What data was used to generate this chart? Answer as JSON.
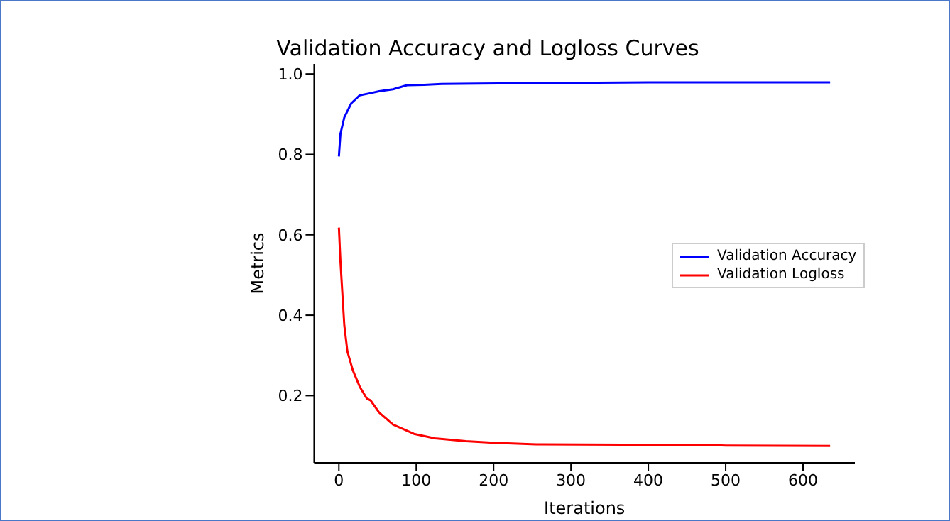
{
  "chart_data": {
    "type": "line",
    "title": "Validation Accuracy and Logloss Curves",
    "xlabel": "Iterations",
    "ylabel": "Metrics",
    "series": [
      {
        "name": "Validation Accuracy",
        "color": "#0000ff",
        "x": [
          0,
          2,
          7,
          16,
          27,
          40,
          52,
          70,
          88,
          110,
          133,
          180,
          232,
          300,
          400,
          500,
          635
        ],
        "values": [
          0.795,
          0.851,
          0.892,
          0.927,
          0.947,
          0.952,
          0.957,
          0.962,
          0.972,
          0.973,
          0.975,
          0.976,
          0.977,
          0.978,
          0.979,
          0.979,
          0.979
        ]
      },
      {
        "name": "Validation Logloss",
        "color": "#ff0000",
        "x": [
          0,
          2,
          7,
          11,
          18,
          27,
          36,
          41,
          52,
          70,
          97,
          124,
          164,
          200,
          255,
          367,
          500,
          635
        ],
        "values": [
          0.618,
          0.534,
          0.375,
          0.31,
          0.263,
          0.222,
          0.193,
          0.188,
          0.158,
          0.128,
          0.105,
          0.094,
          0.087,
          0.083,
          0.079,
          0.078,
          0.076,
          0.075
        ]
      }
    ],
    "xlim": [
      -32,
      667
    ],
    "xticks": [
      0,
      100,
      200,
      300,
      400,
      500,
      600
    ],
    "ylim": [
      0.033,
      1.025
    ],
    "yticks": [
      {
        "value": 0.2,
        "label": "0.2"
      },
      {
        "value": 0.4,
        "label": "0.4"
      },
      {
        "value": 0.6,
        "label": "0.6"
      },
      {
        "value": 0.8,
        "label": "0.8"
      },
      {
        "value": 1.0,
        "label": "1.0"
      }
    ],
    "legend": "center right",
    "grid": false,
    "marker": "none",
    "line_style": "solid"
  }
}
